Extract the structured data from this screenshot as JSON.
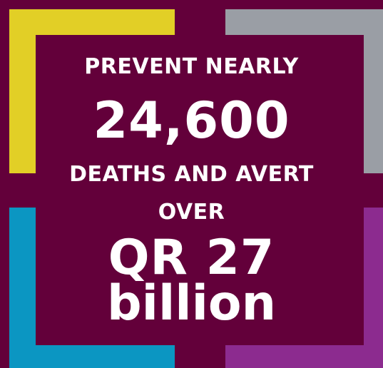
{
  "colors": {
    "background": "#63003a",
    "top_left_bracket": "#e2cf26",
    "top_right_bracket": "#9a9ea5",
    "bottom_left_bracket": "#0b96c2",
    "bottom_right_bracket": "#8c2b8f",
    "text": "#ffffff"
  },
  "text": {
    "line1": "PREVENT NEARLY",
    "line2": "24,600",
    "line3": "DEATHS AND AVERT",
    "line4": "OVER",
    "line5": "QR 27",
    "line6": "billion"
  }
}
